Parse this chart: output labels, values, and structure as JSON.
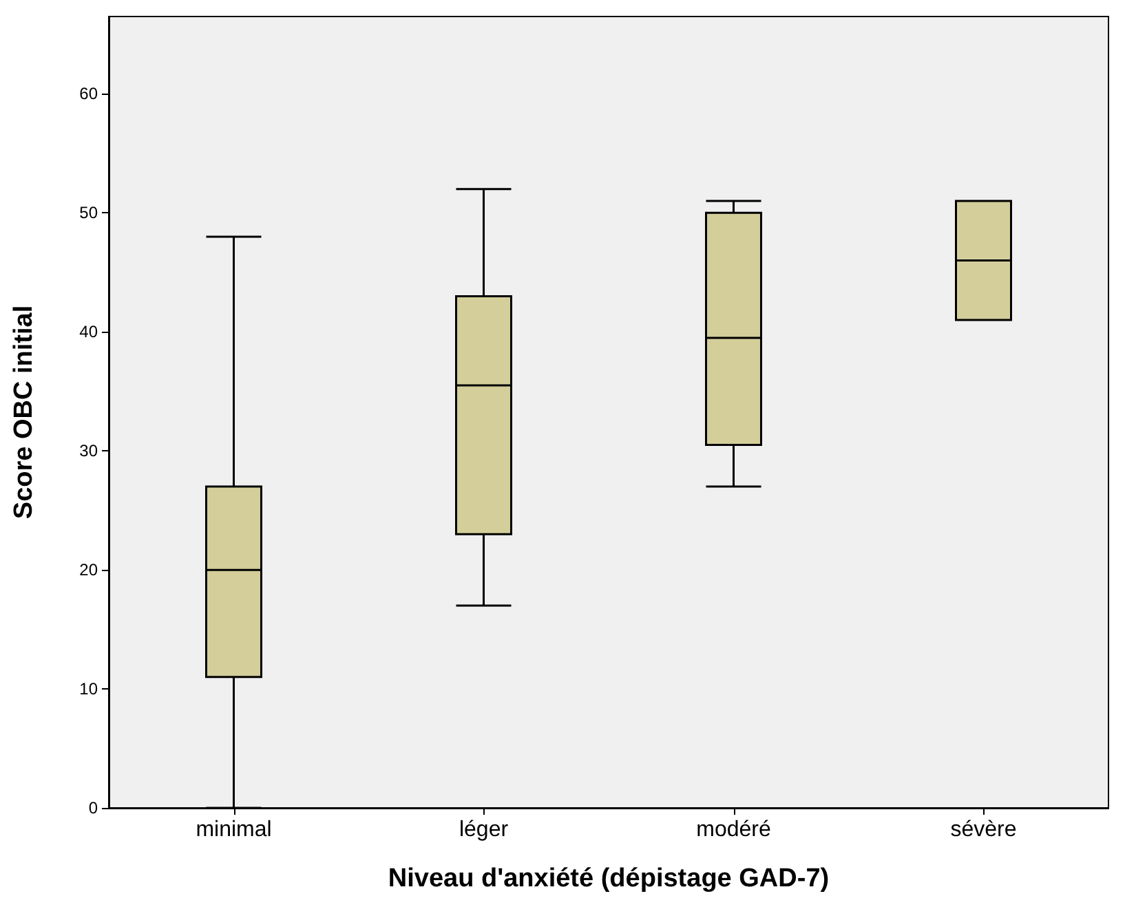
{
  "chart_data": {
    "type": "box",
    "xlabel": "Niveau d'anxiété (dépistage GAD-7)",
    "ylabel": "Score OBC initial",
    "categories": [
      "minimal",
      "léger",
      "modéré",
      "sévère"
    ],
    "boxes": [
      {
        "low": 0,
        "q1": 11,
        "median": 20,
        "q3": 27,
        "high": 48
      },
      {
        "low": 17,
        "q1": 23,
        "median": 35.5,
        "q3": 43,
        "high": 52
      },
      {
        "low": 27,
        "q1": 30.5,
        "median": 39.5,
        "q3": 50,
        "high": 51
      },
      {
        "low": 41,
        "q1": 41,
        "median": 46,
        "q3": 51,
        "high": 51
      }
    ],
    "color": "#d3ce9a",
    "ylim": [
      0,
      66.5
    ],
    "yticks": [
      0,
      10,
      20,
      30,
      40,
      50,
      60
    ],
    "grid": false
  }
}
